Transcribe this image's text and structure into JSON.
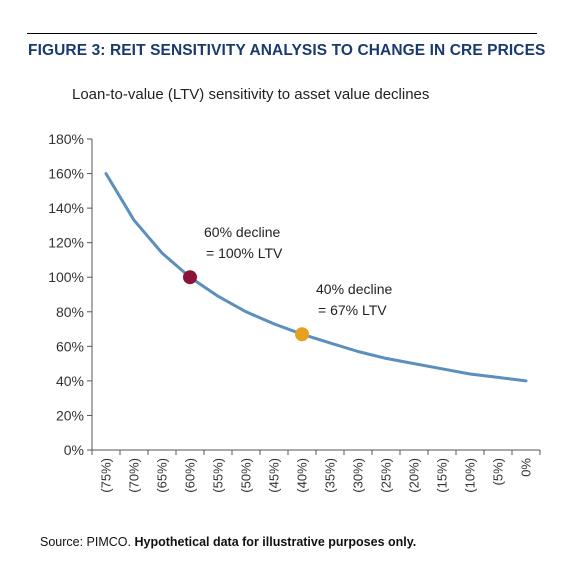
{
  "header": {
    "title": "FIGURE 3: REIT SENSITIVITY ANALYSIS TO CHANGE IN CRE PRICES"
  },
  "chart_data": {
    "type": "line",
    "title": "",
    "subtitle": "Loan-to-value (LTV) sensitivity to asset value declines",
    "xlabel": "",
    "ylabel": "",
    "ylim": [
      0,
      1.8
    ],
    "yticks": [
      "0%",
      "20%",
      "40%",
      "60%",
      "80%",
      "100%",
      "120%",
      "140%",
      "160%",
      "180%"
    ],
    "categories": [
      "(75%)",
      "(70%)",
      "(65%)",
      "(60%)",
      "(55%)",
      "(50%)",
      "(45%)",
      "(40%)",
      "(35%)",
      "(30%)",
      "(25%)",
      "(20%)",
      "(15%)",
      "(10%)",
      "(5%)",
      "0%"
    ],
    "series": [
      {
        "values": [
          1.6,
          1.33,
          1.14,
          1.0,
          0.89,
          0.8,
          0.73,
          0.67,
          0.62,
          0.57,
          0.53,
          0.5,
          0.47,
          0.44,
          0.42,
          0.4
        ],
        "color": "#5b8fbd"
      }
    ],
    "markers": [
      {
        "category": "(60%)",
        "value": 1.0,
        "color": "#8a1538",
        "label_line1": "60% decline",
        "label_line2": "= 100% LTV"
      },
      {
        "category": "(40%)",
        "value": 0.67,
        "color": "#e8a020",
        "label_line1": "40% decline",
        "label_line2": "= 67% LTV"
      }
    ],
    "grid": false
  },
  "footer": {
    "source_prefix": "Source: PIMCO. ",
    "source_bold": "Hypothetical data for illustrative purposes only."
  }
}
